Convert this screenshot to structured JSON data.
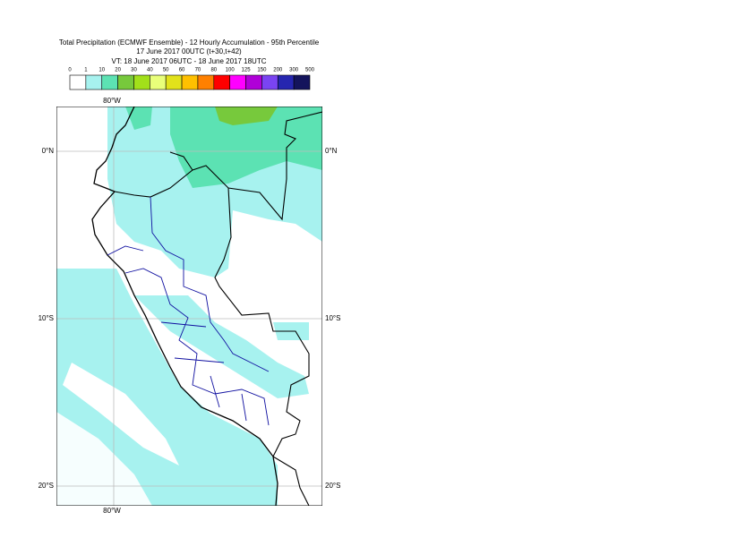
{
  "header": {
    "title": "Total Precipitation (ECMWF Ensemble) - 12 Hourly Accumulation - 95th Percentile",
    "line2": "17 June 2017 00UTC (t+30,t+42)",
    "line3": "VT: 18 June 2017 06UTC - 18 June 2017 18UTC"
  },
  "legend": {
    "labels": [
      "0",
      "1",
      "10",
      "20",
      "30",
      "40",
      "50",
      "60",
      "70",
      "80",
      "100",
      "125",
      "150",
      "200",
      "300",
      "500"
    ],
    "colors": [
      "#ffffff",
      "#a7f2ef",
      "#5ce2b3",
      "#77c93c",
      "#a2e01a",
      "#e9ff7a",
      "#e2e21b",
      "#ffc000",
      "#ff8000",
      "#ff0000",
      "#ff00ff",
      "#b000d8",
      "#7a44f2",
      "#2626b0",
      "#14145c"
    ]
  },
  "map": {
    "lon_label": "80°W",
    "lat_labels": [
      "0°N",
      "10°S",
      "20°S"
    ]
  }
}
